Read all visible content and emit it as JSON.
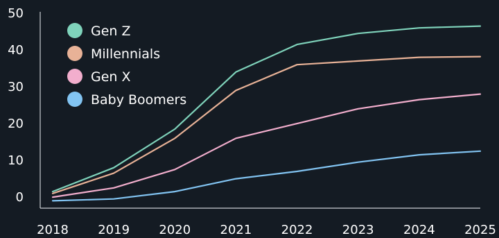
{
  "chart_data": {
    "type": "line",
    "title": "",
    "xlabel": "",
    "ylabel": "",
    "x": [
      "2018",
      "2019",
      "2020",
      "2021",
      "2022",
      "2023",
      "2024",
      "2025"
    ],
    "ylim": [
      -3,
      50
    ],
    "yticks": [
      "0",
      "10",
      "20",
      "30",
      "40",
      "50"
    ],
    "grid": false,
    "legend_position": "top-left",
    "series": [
      {
        "name": "Gen Z",
        "color": "#7fd3bb",
        "values": [
          1.5,
          8,
          18.5,
          34,
          41.5,
          44.5,
          46,
          46.5
        ]
      },
      {
        "name": "Millennials",
        "color": "#e8b297",
        "values": [
          1,
          6.5,
          16,
          29,
          36,
          37,
          38,
          38.2
        ]
      },
      {
        "name": "Gen X",
        "color": "#f2aecd",
        "values": [
          0,
          2.5,
          7.5,
          16,
          20,
          24,
          26.5,
          28
        ]
      },
      {
        "name": "Baby Boomers",
        "color": "#82c4f2",
        "values": [
          -1,
          -0.5,
          1.5,
          5,
          7,
          9.5,
          11.5,
          12.5
        ]
      }
    ]
  }
}
